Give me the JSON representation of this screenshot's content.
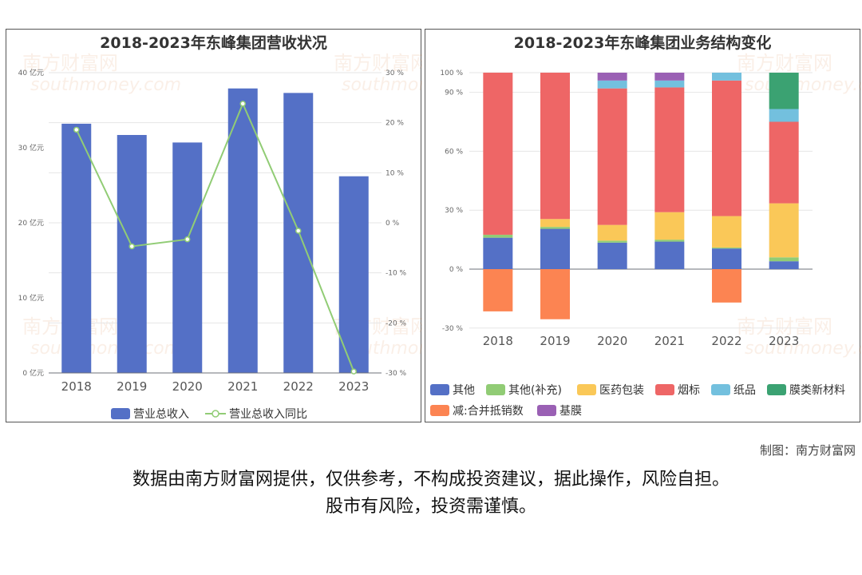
{
  "credit": "制图：南方财富网",
  "disclaimer_line1": "数据由南方财富网提供，仅供参考，不构成投资建议，据此操作，风险自担。",
  "disclaimer_line2": "股市有风险，投资需谨慎。",
  "watermark": [
    "南方财富网",
    "southmoney.com"
  ],
  "chart_data": [
    {
      "type": "bar",
      "title": "2018-2023年东峰集团营收状况",
      "categories": [
        "2018",
        "2019",
        "2020",
        "2021",
        "2022",
        "2023"
      ],
      "y_left_ticks": [
        "0 亿元",
        "10 亿元",
        "20 亿元",
        "30 亿元",
        "40 亿元"
      ],
      "y_right_ticks": [
        "-30 %",
        "-20 %",
        "-10 %",
        "0 %",
        "10 %",
        "20 %",
        "30 %"
      ],
      "ylim": [
        0,
        40
      ],
      "y2lim": [
        -30,
        30
      ],
      "series": [
        {
          "name": "营业总收入",
          "type": "bar",
          "axis": "left",
          "color": "#5470c6",
          "values": [
            33.2,
            31.7,
            30.7,
            37.9,
            37.3,
            26.2
          ]
        },
        {
          "name": "营业总收入同比",
          "type": "line",
          "axis": "right",
          "color": "#91cc75",
          "values": [
            18.6,
            -4.7,
            -3.3,
            23.8,
            -1.6,
            -29.7
          ]
        }
      ],
      "legend": "bottom",
      "grid": true
    },
    {
      "type": "bar",
      "stacked": true,
      "title": "2018-2023年东峰集团业务结构变化",
      "categories": [
        "2018",
        "2019",
        "2020",
        "2021",
        "2022",
        "2023"
      ],
      "y_ticks": [
        "-30 %",
        "0 %",
        "30 %",
        "60 %",
        "90 %",
        "100 %"
      ],
      "ylim": [
        -30,
        100
      ],
      "series": [
        {
          "name": "其他",
          "color": "#5470c6",
          "values": [
            16,
            20.5,
            13.5,
            14,
            10.5,
            4
          ]
        },
        {
          "name": "其他(补充)",
          "color": "#91cc75",
          "values": [
            1.5,
            1,
            1,
            1,
            0.5,
            2
          ]
        },
        {
          "name": "医药包装",
          "color": "#fac858",
          "values": [
            0,
            4,
            8,
            14,
            16,
            27.5
          ]
        },
        {
          "name": "烟标",
          "color": "#ee6666",
          "values": [
            82.5,
            74.5,
            69.5,
            63.5,
            69,
            41.5
          ]
        },
        {
          "name": "纸品",
          "color": "#73c0de",
          "values": [
            0,
            0,
            4,
            3.5,
            4,
            6.5
          ]
        },
        {
          "name": "膜类新材料",
          "color": "#3ba272",
          "values": [
            0,
            0,
            0,
            0,
            0,
            18.5
          ]
        },
        {
          "name": "减:合并抵销数",
          "color": "#fc8452",
          "values": [
            -21.5,
            -25.5,
            0,
            0,
            -17,
            0
          ]
        },
        {
          "name": "基膜",
          "color": "#9a60b4",
          "values": [
            0,
            0,
            4,
            4,
            0,
            0
          ]
        }
      ],
      "legend": "bottom",
      "grid": true
    }
  ]
}
